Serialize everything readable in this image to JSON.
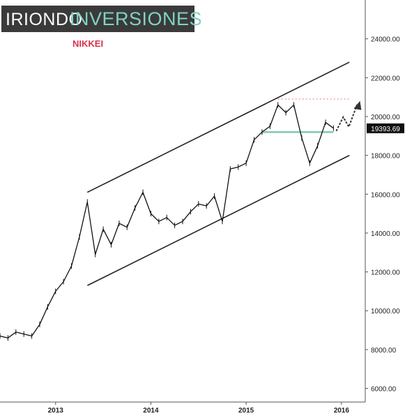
{
  "brand": {
    "part1": "IRIONDO",
    "part2": "INVERSIONES"
  },
  "chart_data": {
    "type": "line",
    "title": "NIKKEI",
    "xlabel": "",
    "ylabel": "",
    "x_ticks": [
      "2013",
      "2014",
      "2015",
      "2016"
    ],
    "y_ticks": [
      6000,
      8000,
      10000,
      12000,
      14000,
      16000,
      18000,
      20000,
      22000,
      24000
    ],
    "y_tick_labels": [
      "6000.00",
      "8000.00",
      "10000.00",
      "12000.00",
      "14000.00",
      "16000.00",
      "18000.00",
      "20000.00",
      "22000.00",
      "24000.00"
    ],
    "ylim": [
      5300,
      26000
    ],
    "xlim": [
      "2012-06",
      "2016-04"
    ],
    "last_price": 19393.69,
    "last_price_label": "19393.69",
    "colors": {
      "price": "#111111",
      "channel": "#222222",
      "support": "#7fc9b7",
      "resistance": "#f08080",
      "price_badge": "#111111"
    },
    "series": [
      {
        "x": [
          "2012-06",
          "2012-07",
          "2012-08",
          "2012-09",
          "2012-10",
          "2012-11",
          "2012-12",
          "2013-01",
          "2013-02",
          "2013-03",
          "2013-04",
          "2013-05",
          "2013-06",
          "2013-07",
          "2013-08",
          "2013-09",
          "2013-10",
          "2013-11",
          "2013-12",
          "2014-01",
          "2014-02",
          "2014-03",
          "2014-04",
          "2014-05",
          "2014-06",
          "2014-07",
          "2014-08",
          "2014-09",
          "2014-10",
          "2014-11",
          "2014-12",
          "2015-01",
          "2015-02",
          "2015-03",
          "2015-04",
          "2015-05",
          "2015-06",
          "2015-07",
          "2015-08",
          "2015-09",
          "2015-10",
          "2015-11",
          "2015-12"
        ],
        "y": [
          8700,
          8600,
          8900,
          8800,
          8700,
          9300,
          10200,
          11000,
          11500,
          12300,
          13800,
          15600,
          12900,
          14200,
          13400,
          14500,
          14300,
          15300,
          16100,
          15000,
          14600,
          14800,
          14400,
          14600,
          15100,
          15500,
          15400,
          15900,
          14600,
          17300,
          17400,
          17600,
          18800,
          19200,
          19500,
          20600,
          20200,
          20600,
          18900,
          17600,
          18500,
          19700,
          19400
        ]
      }
    ],
    "channel": {
      "upper": {
        "x": [
          "2013-05",
          "2016-02"
        ],
        "y": [
          16100,
          22800
        ]
      },
      "lower": {
        "x": [
          "2013-05",
          "2016-02"
        ],
        "y": [
          11300,
          18000
        ]
      }
    },
    "support_line": {
      "x": [
        "2015-03",
        "2015-12"
      ],
      "y": [
        19200,
        19200
      ]
    },
    "resistance_line": {
      "x": [
        "2015-05",
        "2016-02"
      ],
      "y": [
        20900,
        20900
      ]
    }
  }
}
